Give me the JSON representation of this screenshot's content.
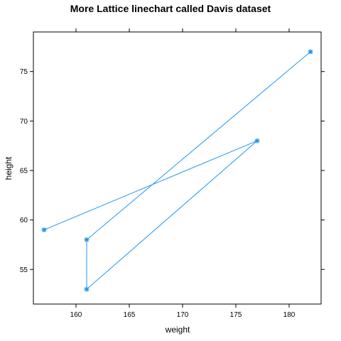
{
  "chart_data": {
    "type": "line",
    "title": "More Lattice linechart called Davis dataset",
    "xlabel": "weight",
    "ylabel": "height",
    "xlim": [
      156.0,
      183.0
    ],
    "ylim": [
      51.5,
      79.0
    ],
    "xticks": [
      160,
      165,
      170,
      175,
      180
    ],
    "yticks": [
      55,
      60,
      65,
      70,
      75
    ],
    "xtick_labels": [
      "160",
      "165",
      "170",
      "175",
      "180"
    ],
    "ytick_labels": [
      "55",
      "60",
      "65",
      "70",
      "75"
    ],
    "series": [
      {
        "x": [
          157,
          177,
          161,
          161,
          182
        ],
        "y": [
          59,
          68,
          53,
          58,
          77
        ],
        "color": "#2196f3",
        "marker": "asterisk"
      }
    ],
    "grid": false,
    "legend": "none"
  }
}
